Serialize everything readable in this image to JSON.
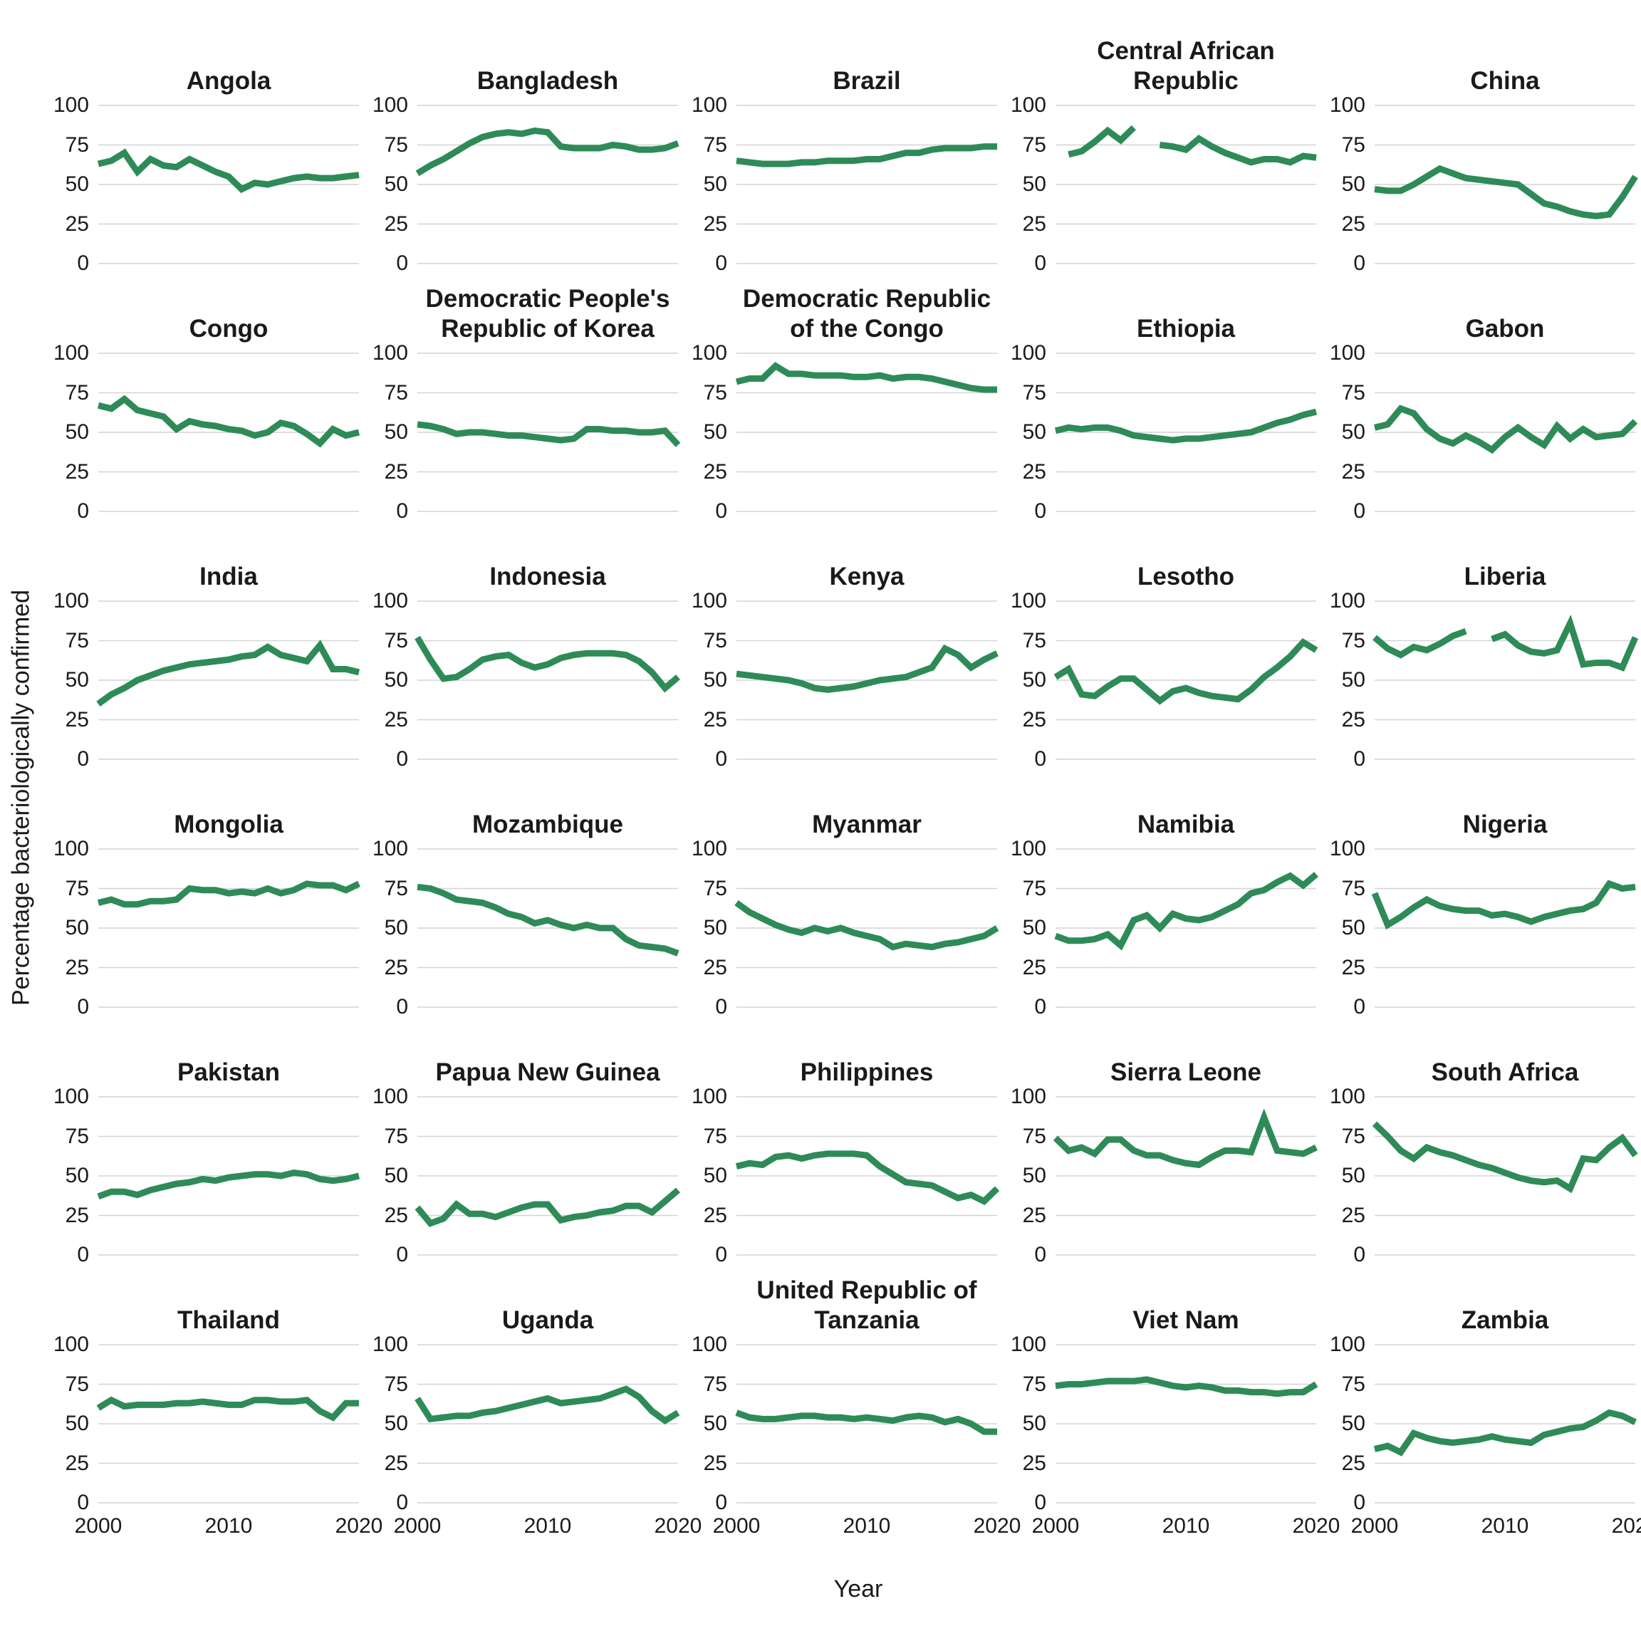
{
  "figure": {
    "y_axis_title": "Percentage bacteriologically confirmed",
    "x_axis_title": "Year",
    "line_color": "#2e8b57",
    "grid_color": "#d4d4d4",
    "background_color": "#ffffff",
    "text_color": "#1a1a1a",
    "columns": 5,
    "rows": 6
  },
  "chart_data": {
    "type": "line",
    "x_label": "Year",
    "y_label": "Percentage bacteriologically confirmed",
    "x": [
      2000,
      2001,
      2002,
      2003,
      2004,
      2005,
      2006,
      2007,
      2008,
      2009,
      2010,
      2011,
      2012,
      2013,
      2014,
      2015,
      2016,
      2017,
      2018,
      2019,
      2020
    ],
    "x_ticks": [
      2000,
      2010,
      2020
    ],
    "y_ticks": [
      0,
      25,
      50,
      75,
      100
    ],
    "ylim": [
      0,
      100
    ],
    "xlim": [
      2000,
      2020
    ],
    "grid": true,
    "legend_position": "none",
    "series": [
      {
        "name": "Angola",
        "values": [
          63,
          65,
          70,
          58,
          66,
          62,
          61,
          66,
          62,
          58,
          55,
          47,
          51,
          50,
          52,
          54,
          55,
          54,
          54,
          55,
          56
        ]
      },
      {
        "name": "Bangladesh",
        "values": [
          57,
          62,
          66,
          71,
          76,
          80,
          82,
          83,
          82,
          84,
          83,
          74,
          73,
          73,
          73,
          75,
          74,
          72,
          72,
          73,
          76
        ]
      },
      {
        "name": "Brazil",
        "values": [
          65,
          64,
          63,
          63,
          63,
          64,
          64,
          65,
          65,
          65,
          66,
          66,
          68,
          70,
          70,
          72,
          73,
          73,
          73,
          74,
          74
        ]
      },
      {
        "name": "Central African Republic",
        "values": [
          null,
          69,
          71,
          77,
          84,
          78,
          86,
          null,
          75,
          74,
          72,
          79,
          74,
          70,
          67,
          64,
          66,
          66,
          64,
          68,
          67
        ]
      },
      {
        "name": "China",
        "values": [
          47,
          46,
          46,
          50,
          55,
          60,
          57,
          54,
          53,
          52,
          51,
          50,
          44,
          38,
          36,
          33,
          31,
          30,
          31,
          42,
          55
        ]
      },
      {
        "name": "Congo",
        "values": [
          67,
          65,
          71,
          64,
          62,
          60,
          52,
          57,
          55,
          54,
          52,
          51,
          48,
          50,
          56,
          54,
          49,
          43,
          52,
          48,
          50
        ]
      },
      {
        "name": "Democratic People's Republic of Korea",
        "values": [
          55,
          54,
          52,
          49,
          50,
          50,
          49,
          48,
          48,
          47,
          46,
          45,
          46,
          52,
          52,
          51,
          51,
          50,
          50,
          51,
          42
        ]
      },
      {
        "name": "Democratic Republic of the Congo",
        "values": [
          82,
          84,
          84,
          92,
          87,
          87,
          86,
          86,
          86,
          85,
          85,
          86,
          84,
          85,
          85,
          84,
          82,
          80,
          78,
          77,
          77
        ]
      },
      {
        "name": "Ethiopia",
        "values": [
          51,
          53,
          52,
          53,
          53,
          51,
          48,
          47,
          46,
          45,
          46,
          46,
          47,
          48,
          49,
          50,
          53,
          56,
          58,
          61,
          63
        ]
      },
      {
        "name": "Gabon",
        "values": [
          53,
          55,
          65,
          62,
          52,
          46,
          43,
          48,
          44,
          39,
          47,
          53,
          47,
          42,
          54,
          46,
          52,
          47,
          48,
          49,
          57
        ]
      },
      {
        "name": "India",
        "values": [
          35,
          41,
          45,
          50,
          53,
          56,
          58,
          60,
          61,
          62,
          63,
          65,
          66,
          71,
          66,
          64,
          62,
          72,
          57,
          57,
          55
        ]
      },
      {
        "name": "Indonesia",
        "values": [
          77,
          63,
          51,
          52,
          57,
          63,
          65,
          66,
          61,
          58,
          60,
          64,
          66,
          67,
          67,
          67,
          66,
          62,
          55,
          45,
          52
        ]
      },
      {
        "name": "Kenya",
        "values": [
          54,
          53,
          52,
          51,
          50,
          48,
          45,
          44,
          45,
          46,
          48,
          50,
          51,
          52,
          55,
          58,
          70,
          66,
          58,
          63,
          67
        ]
      },
      {
        "name": "Lesotho",
        "values": [
          52,
          57,
          41,
          40,
          46,
          51,
          51,
          44,
          37,
          43,
          45,
          42,
          40,
          39,
          38,
          44,
          52,
          58,
          65,
          74,
          69
        ]
      },
      {
        "name": "Liberia",
        "values": [
          77,
          70,
          66,
          71,
          69,
          73,
          78,
          81,
          null,
          76,
          79,
          72,
          68,
          67,
          69,
          86,
          60,
          61,
          61,
          58,
          77
        ]
      },
      {
        "name": "Mongolia",
        "values": [
          66,
          68,
          65,
          65,
          67,
          67,
          68,
          75,
          74,
          74,
          72,
          73,
          72,
          75,
          72,
          74,
          78,
          77,
          77,
          74,
          78
        ]
      },
      {
        "name": "Mozambique",
        "values": [
          76,
          75,
          72,
          68,
          67,
          66,
          63,
          59,
          57,
          53,
          55,
          52,
          50,
          52,
          50,
          50,
          43,
          39,
          38,
          37,
          34
        ]
      },
      {
        "name": "Myanmar",
        "values": [
          66,
          60,
          56,
          52,
          49,
          47,
          50,
          48,
          50,
          47,
          45,
          43,
          38,
          40,
          39,
          38,
          40,
          41,
          43,
          45,
          50
        ]
      },
      {
        "name": "Namibia",
        "values": [
          45,
          42,
          42,
          43,
          46,
          39,
          55,
          58,
          50,
          59,
          56,
          55,
          57,
          61,
          65,
          72,
          74,
          79,
          83,
          77,
          84
        ]
      },
      {
        "name": "Nigeria",
        "values": [
          72,
          52,
          57,
          63,
          68,
          64,
          62,
          61,
          61,
          58,
          59,
          57,
          54,
          57,
          59,
          61,
          62,
          66,
          78,
          75,
          76
        ]
      },
      {
        "name": "Pakistan",
        "values": [
          37,
          40,
          40,
          38,
          41,
          43,
          45,
          46,
          48,
          47,
          49,
          50,
          51,
          51,
          50,
          52,
          51,
          48,
          47,
          48,
          50
        ]
      },
      {
        "name": "Papua New Guinea",
        "values": [
          30,
          20,
          23,
          32,
          26,
          26,
          24,
          27,
          30,
          32,
          32,
          22,
          24,
          25,
          27,
          28,
          31,
          31,
          27,
          34,
          41
        ]
      },
      {
        "name": "Philippines",
        "values": [
          56,
          58,
          57,
          62,
          63,
          61,
          63,
          64,
          64,
          64,
          63,
          56,
          51,
          46,
          45,
          44,
          40,
          36,
          38,
          34,
          42
        ]
      },
      {
        "name": "Sierra Leone",
        "values": [
          74,
          66,
          68,
          64,
          73,
          73,
          66,
          63,
          63,
          60,
          58,
          57,
          62,
          66,
          66,
          65,
          87,
          66,
          65,
          64,
          68
        ]
      },
      {
        "name": "South Africa",
        "values": [
          83,
          75,
          66,
          61,
          68,
          65,
          63,
          60,
          57,
          55,
          52,
          49,
          47,
          46,
          47,
          42,
          61,
          60,
          68,
          74,
          63
        ]
      },
      {
        "name": "Thailand",
        "values": [
          60,
          65,
          61,
          62,
          62,
          62,
          63,
          63,
          64,
          63,
          62,
          62,
          65,
          65,
          64,
          64,
          65,
          58,
          54,
          63,
          63
        ]
      },
      {
        "name": "Uganda",
        "values": [
          66,
          53,
          54,
          55,
          55,
          57,
          58,
          60,
          62,
          64,
          66,
          63,
          64,
          65,
          66,
          69,
          72,
          67,
          58,
          52,
          57
        ]
      },
      {
        "name": "United Republic of Tanzania",
        "values": [
          57,
          54,
          53,
          53,
          54,
          55,
          55,
          54,
          54,
          53,
          54,
          53,
          52,
          54,
          55,
          54,
          51,
          53,
          50,
          45,
          45
        ]
      },
      {
        "name": "Viet Nam",
        "values": [
          74,
          75,
          75,
          76,
          77,
          77,
          77,
          78,
          76,
          74,
          73,
          74,
          73,
          71,
          71,
          70,
          70,
          69,
          70,
          70,
          75
        ]
      },
      {
        "name": "Zambia",
        "values": [
          34,
          36,
          32,
          44,
          41,
          39,
          38,
          39,
          40,
          42,
          40,
          39,
          38,
          43,
          45,
          47,
          48,
          52,
          57,
          55,
          51
        ]
      }
    ]
  }
}
